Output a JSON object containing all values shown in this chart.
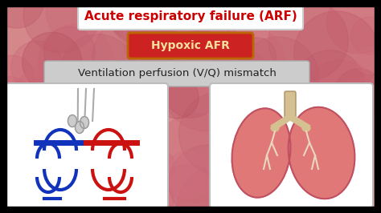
{
  "bg_color": "#d4888a",
  "title_text": "Acute respiratory failure (ARF)",
  "title_color": "#cc0000",
  "title_box_color": "#ffffff",
  "title_box_edge": "#cccccc",
  "subtitle_text": "Hypoxic AFR",
  "subtitle_bg": "#cc2222",
  "subtitle_text_color": "#f5e0a0",
  "subtitle_box_edge": "#bb6600",
  "label_text": "Ventilation perfusion (V/Q) mismatch",
  "label_bg": "#cccccc",
  "label_text_color": "#222222",
  "left_box_bg": "#ffffff",
  "right_box_bg": "#ffffff",
  "border_color": "#bbbbbb",
  "figsize": [
    4.74,
    2.66
  ],
  "dpi": 100
}
